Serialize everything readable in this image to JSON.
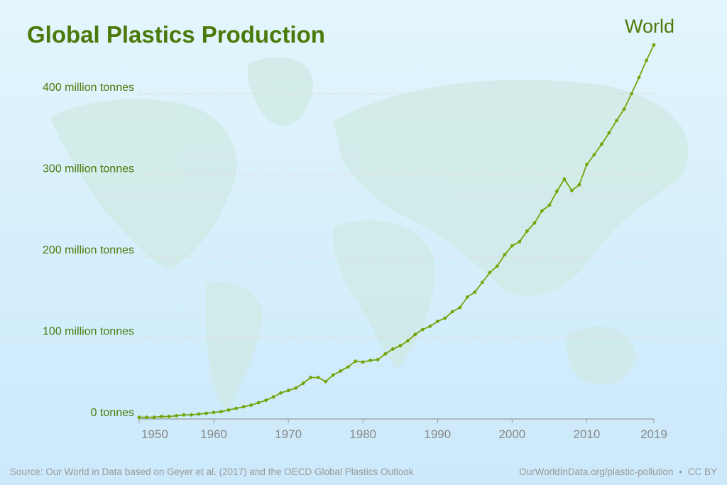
{
  "chart_data": {
    "type": "line",
    "title": "Global Plastics Production",
    "xlabel": "",
    "ylabel": "",
    "xlim": [
      1950,
      2019
    ],
    "ylim": [
      0,
      460
    ],
    "grid": true,
    "x_ticks": [
      1950,
      1960,
      1970,
      1980,
      1990,
      2000,
      2010,
      2019
    ],
    "x_tick_labels": [
      "1950",
      "1960",
      "1970",
      "1980",
      "1990",
      "2000",
      "2010",
      "2019"
    ],
    "y_ticks": [
      0,
      100,
      200,
      300,
      400
    ],
    "y_tick_labels": [
      "0 tonnes",
      "100 million tonnes",
      "200 million tonnes",
      "300 million tonnes",
      "400 million tonnes"
    ],
    "series": [
      {
        "name": "World",
        "color": "#73a50a",
        "x": [
          1950,
          1951,
          1952,
          1953,
          1954,
          1955,
          1956,
          1957,
          1958,
          1959,
          1960,
          1961,
          1962,
          1963,
          1964,
          1965,
          1966,
          1967,
          1968,
          1969,
          1970,
          1971,
          1972,
          1973,
          1974,
          1975,
          1976,
          1977,
          1978,
          1979,
          1980,
          1981,
          1982,
          1983,
          1984,
          1985,
          1986,
          1987,
          1988,
          1989,
          1990,
          1991,
          1992,
          1993,
          1994,
          1995,
          1996,
          1997,
          1998,
          1999,
          2000,
          2001,
          2002,
          2003,
          2004,
          2005,
          2006,
          2007,
          2008,
          2009,
          2010,
          2011,
          2012,
          2013,
          2014,
          2015,
          2016,
          2017,
          2018,
          2019
        ],
        "values": [
          2,
          2,
          2,
          3,
          3,
          4,
          5,
          5,
          6,
          7,
          8,
          9,
          11,
          13,
          15,
          17,
          20,
          23,
          27,
          32,
          35,
          38,
          44,
          51,
          51,
          46,
          54,
          59,
          64,
          71,
          70,
          72,
          73,
          80,
          86,
          90,
          96,
          104,
          110,
          114,
          120,
          124,
          132,
          137,
          150,
          156,
          168,
          180,
          188,
          202,
          213,
          218,
          231,
          241,
          256,
          263,
          280,
          295,
          281,
          288,
          313,
          325,
          338,
          352,
          367,
          381,
          400,
          420,
          441,
          460
        ]
      }
    ]
  },
  "footer": {
    "source": "Source: Our World in Data based on Geyer et al. (2017) and the OECD Global Plastics Outlook",
    "url": "OurWorldInData.org/plastic-pollution",
    "separator": "•",
    "license": "CC BY"
  },
  "colors": {
    "title": "#4a7a0a",
    "line": "#73a50a",
    "axis": "#9a9a9a"
  }
}
